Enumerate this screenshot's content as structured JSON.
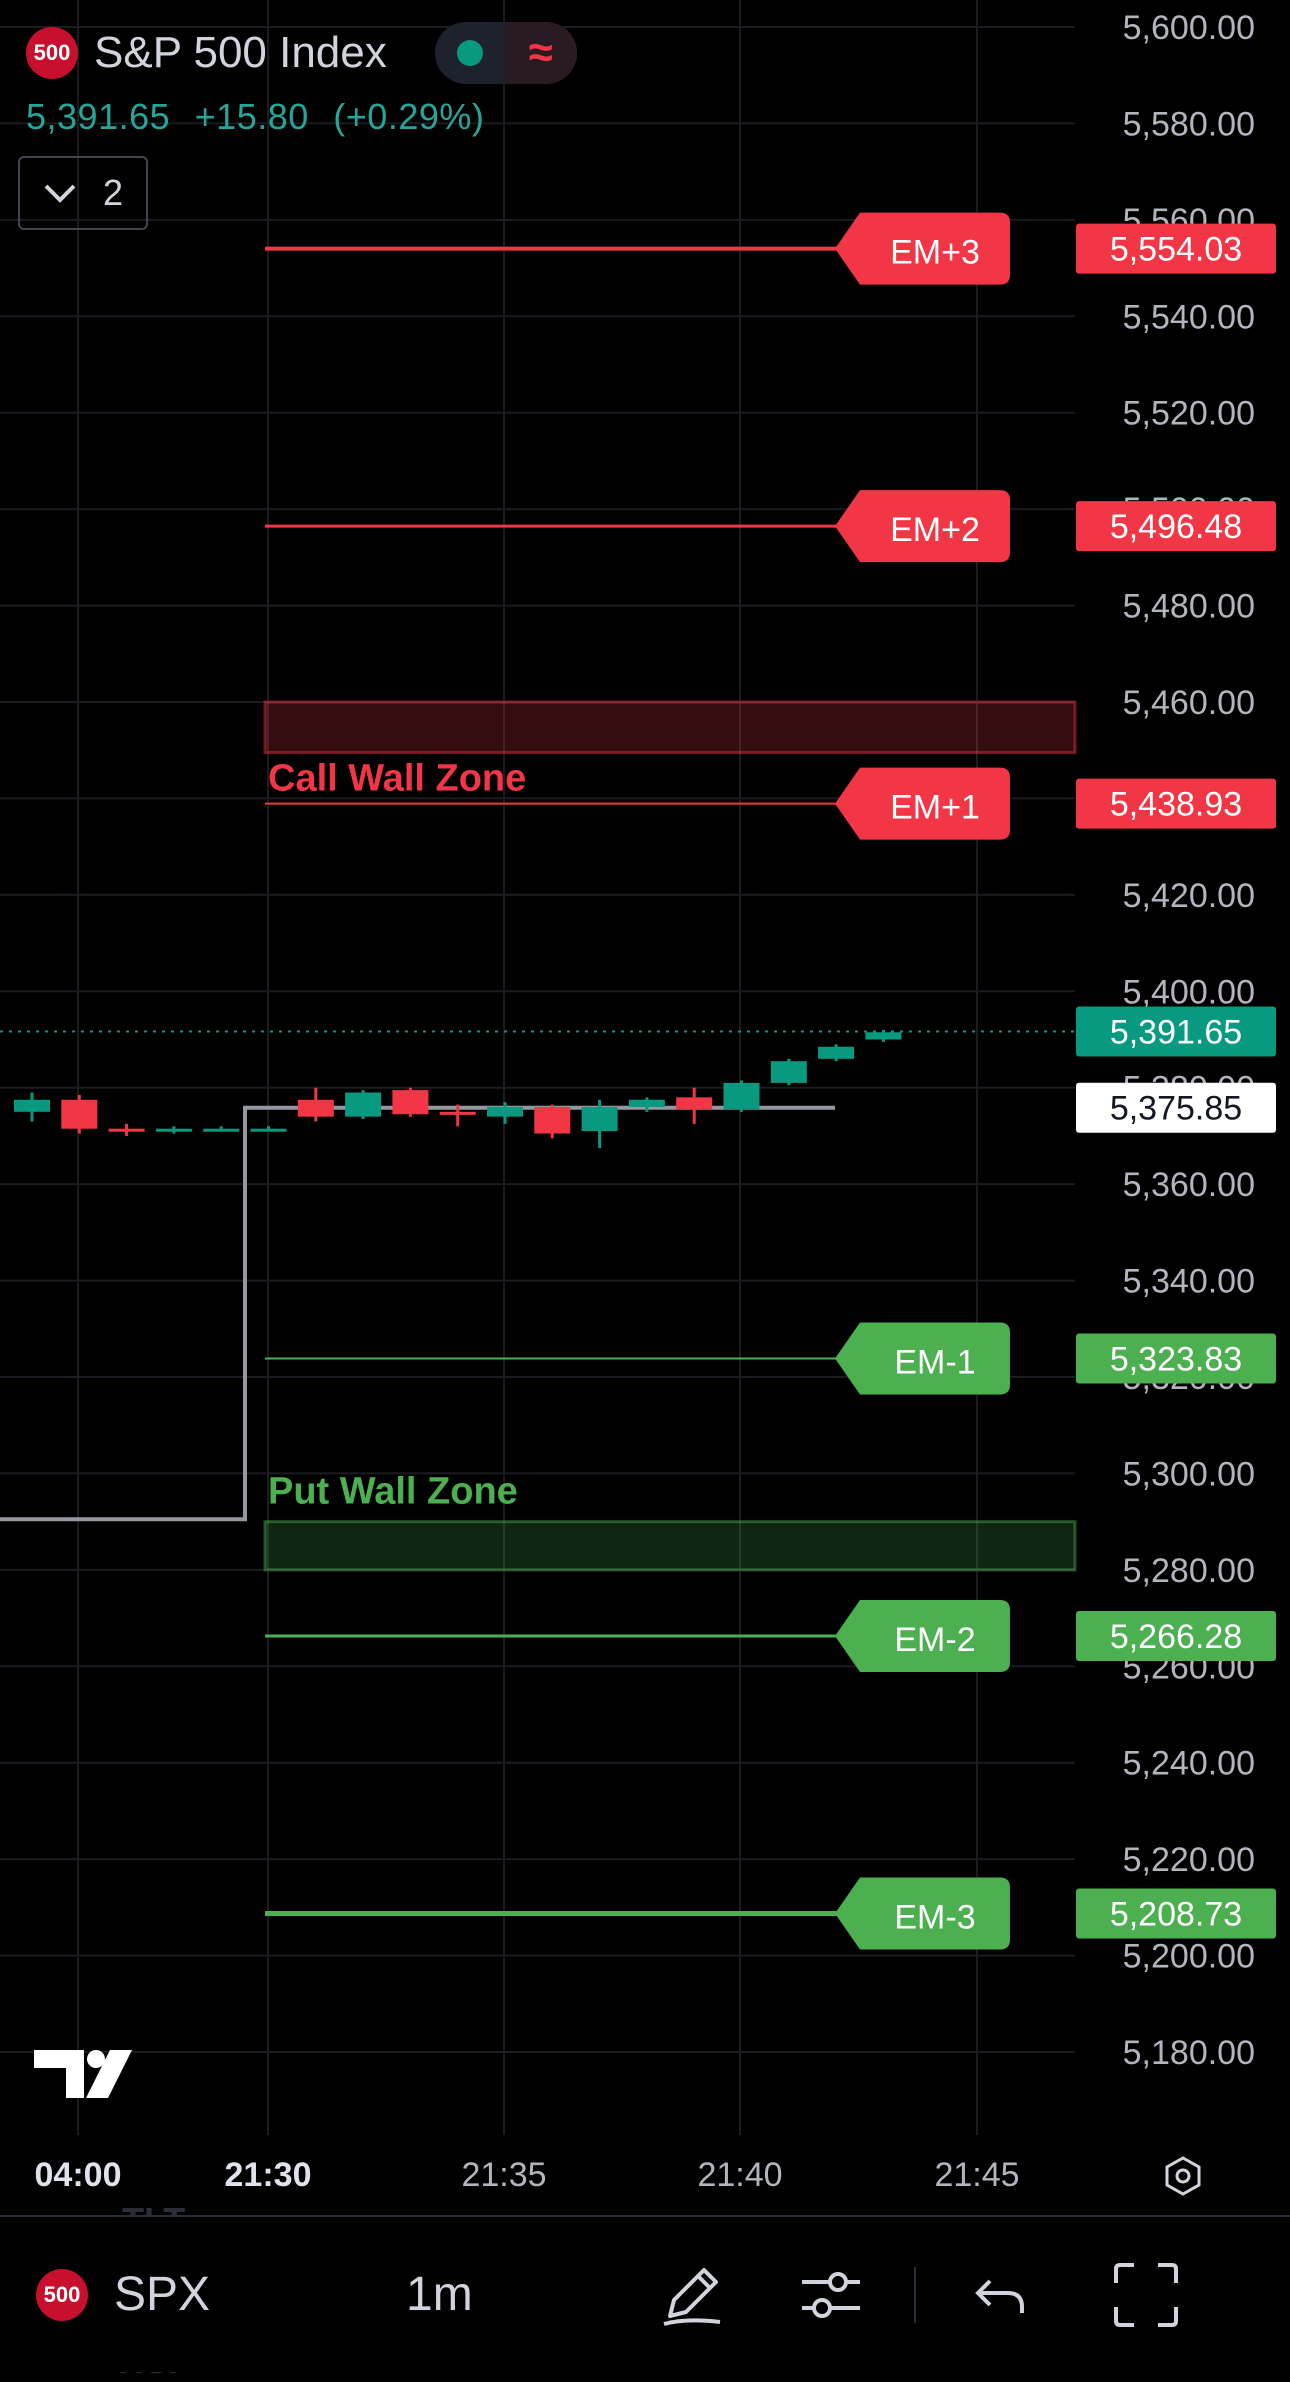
{
  "header": {
    "badge": "500",
    "symbol_name": "S&P 500 Index",
    "price": "5,391.65",
    "change": "+15.80",
    "change_pct": "(+0.29%)",
    "legend_count": "2",
    "live_color": "#089981",
    "wave_color": "#f23645"
  },
  "chart_data": {
    "type": "candlestick",
    "y_axis": {
      "ylim": [
        5170,
        5605
      ],
      "ticks": [
        "5,600.00",
        "5,580.00",
        "5,560.00",
        "5,540.00",
        "5,520.00",
        "5,500.00",
        "5,480.00",
        "5,460.00",
        "5,440.00",
        "5,420.00",
        "5,400.00",
        "5,380.00",
        "5,360.00",
        "5,340.00",
        "5,320.00",
        "5,300.00",
        "5,280.00",
        "5,260.00",
        "5,240.00",
        "5,220.00",
        "5,200.00",
        "5,180.00"
      ],
      "tick_values": [
        5600,
        5580,
        5560,
        5540,
        5520,
        5500,
        5480,
        5460,
        5440,
        5420,
        5400,
        5380,
        5360,
        5340,
        5320,
        5300,
        5280,
        5260,
        5240,
        5220,
        5200,
        5180
      ]
    },
    "x_axis": {
      "ticks": [
        {
          "label": "04:00",
          "bold": true
        },
        {
          "label": "21:30",
          "bold": true
        },
        {
          "label": "21:35",
          "bold": false
        },
        {
          "label": "21:40",
          "bold": false
        },
        {
          "label": "21:45",
          "bold": false
        }
      ]
    },
    "candles": [
      {
        "o": 5375.0,
        "h": 5379.0,
        "l": 5373.0,
        "c": 5377.5
      },
      {
        "o": 5377.5,
        "h": 5378.5,
        "l": 5370.5,
        "c": 5371.5
      },
      {
        "o": 5371.5,
        "h": 5372.5,
        "l": 5370.0,
        "c": 5371.0
      },
      {
        "o": 5371.0,
        "h": 5372.0,
        "l": 5370.5,
        "c": 5371.5
      },
      {
        "o": 5371.5,
        "h": 5372.0,
        "l": 5371.0,
        "c": 5371.5
      },
      {
        "o": 5371.5,
        "h": 5372.0,
        "l": 5371.0,
        "c": 5371.5
      },
      {
        "o": 5377.5,
        "h": 5380.0,
        "l": 5373.0,
        "c": 5374.0
      },
      {
        "o": 5374.0,
        "h": 5379.5,
        "l": 5373.5,
        "c": 5379.0
      },
      {
        "o": 5379.5,
        "h": 5380.0,
        "l": 5374.0,
        "c": 5374.5
      },
      {
        "o": 5375.0,
        "h": 5376.5,
        "l": 5372.0,
        "c": 5374.5
      },
      {
        "o": 5374.0,
        "h": 5377.0,
        "l": 5372.5,
        "c": 5376.0
      },
      {
        "o": 5376.0,
        "h": 5376.5,
        "l": 5369.5,
        "c": 5370.5
      },
      {
        "o": 5371.0,
        "h": 5377.5,
        "l": 5367.5,
        "c": 5376.0
      },
      {
        "o": 5376.0,
        "h": 5378.0,
        "l": 5375.0,
        "c": 5377.5
      },
      {
        "o": 5378.0,
        "h": 5380.0,
        "l": 5372.5,
        "c": 5375.5
      },
      {
        "o": 5375.5,
        "h": 5381.5,
        "l": 5375.0,
        "c": 5381.0
      },
      {
        "o": 5381.0,
        "h": 5386.0,
        "l": 5380.5,
        "c": 5385.5
      },
      {
        "o": 5386.0,
        "h": 5389.0,
        "l": 5385.5,
        "c": 5388.5
      },
      {
        "o": 5390.0,
        "h": 5392.0,
        "l": 5389.5,
        "c": 5391.5
      }
    ],
    "candle_colors": {
      "up": "#089981",
      "down": "#f23645"
    },
    "prev_close_line": {
      "step_from": 5290.5,
      "step_to": 5375.85,
      "color": "#9598a1"
    },
    "levels": [
      {
        "label": "EM+3",
        "value": 5554.03,
        "price_label": "5,554.03",
        "color": "#f23645"
      },
      {
        "label": "EM+2",
        "value": 5496.48,
        "price_label": "5,496.48",
        "color": "#f23645"
      },
      {
        "label": "EM+1",
        "value": 5438.93,
        "price_label": "5,438.93",
        "color": "#f23645"
      },
      {
        "label": "EM-1",
        "value": 5323.83,
        "price_label": "5,323.83",
        "color": "#4caf50"
      },
      {
        "label": "EM-2",
        "value": 5266.28,
        "price_label": "5,266.28",
        "color": "#4caf50"
      },
      {
        "label": "EM-3",
        "value": 5208.73,
        "price_label": "5,208.73",
        "color": "#4caf50"
      }
    ],
    "zones": [
      {
        "label": "Call Wall Zone",
        "top": 5460.0,
        "bottom": 5449.5,
        "color": "#f23645"
      },
      {
        "label": "Put Wall Zone",
        "top": 5290.0,
        "bottom": 5280.0,
        "color": "#4caf50"
      }
    ],
    "last_price": {
      "value": 5391.65,
      "label": "5,391.65",
      "color": "#089981"
    },
    "prev_close": {
      "value": 5375.85,
      "label": "5,375.85"
    }
  },
  "toolbar": {
    "badge": "500",
    "symbol": "SPX",
    "interval": "1m"
  }
}
